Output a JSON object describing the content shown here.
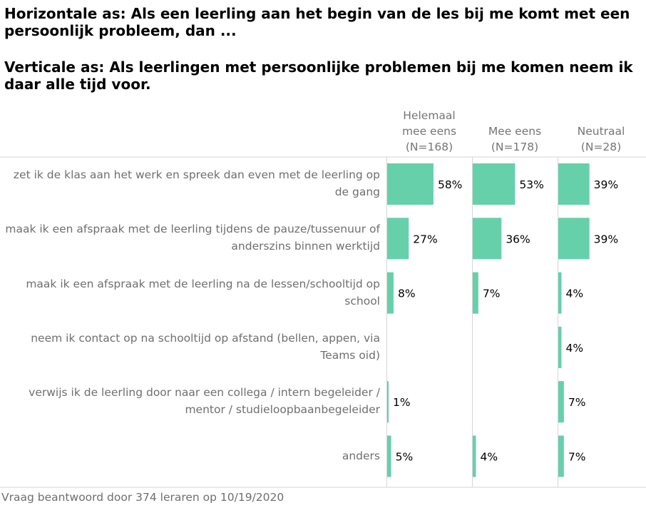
{
  "title_horizontal": "Horizontale as: Als een leerling aan het begin van de les bij me komt met een persoonlijk probleem, dan ...",
  "title_vertical": "Verticale as: Als leerlingen met persoonlijke problemen bij me komen neem ik daar alle tijd voor.",
  "footer": "Vraag beantwoord door 374 leraren op 10/19/2020",
  "colors": {
    "bar": "#66d0aa",
    "grid": "#d6d6d6",
    "label": "#6f6f6f"
  },
  "chart_data": {
    "type": "bar",
    "orientation": "horizontal",
    "categories": [
      "zet ik de klas aan het werk en spreek dan even met de leerling op de gang",
      "maak ik een afspraak met de leerling tijdens de pauze/tussenuur of anderszins binnen werktijd",
      "maak ik een afspraak met de leerling na de lessen/schooltijd op school",
      "neem ik contact op na schooltijd op afstand (bellen, appen, via Teams oid)",
      "verwijs ik de leerling door naar een collega / intern begeleider / mentor / studieloopbaanbegeleider",
      "anders"
    ],
    "series": [
      {
        "name": "Helemaal mee eens",
        "n": "(N=168)",
        "values": [
          58,
          27,
          8,
          null,
          1,
          5
        ]
      },
      {
        "name": "Mee eens",
        "n": "(N=178)",
        "values": [
          53,
          36,
          7,
          null,
          null,
          4
        ]
      },
      {
        "name": "Neutraal",
        "n": "(N=28)",
        "values": [
          39,
          39,
          4,
          4,
          7,
          7
        ]
      }
    ],
    "value_suffix": "%",
    "xlim": [
      0,
      100
    ]
  }
}
